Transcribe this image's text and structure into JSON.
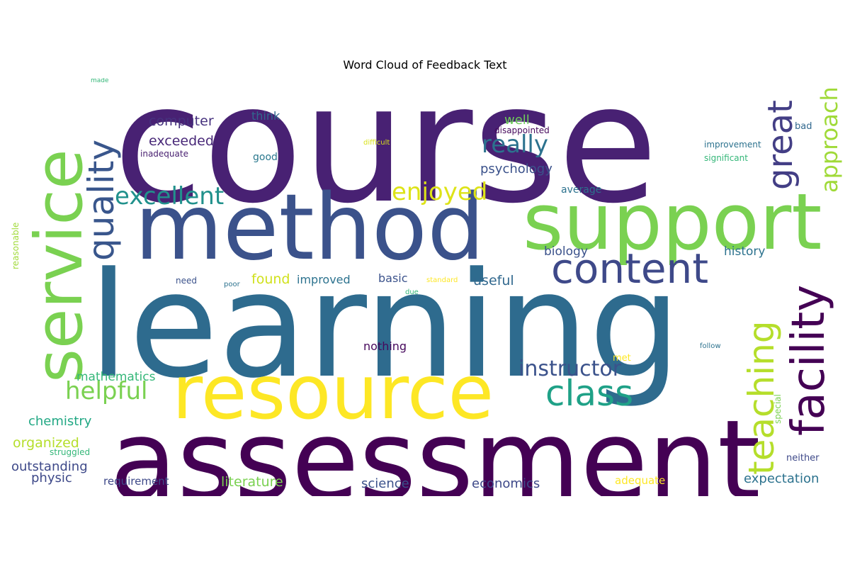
{
  "figure": {
    "title": "Word Cloud of Feedback Text"
  },
  "words": [
    {
      "text": "course",
      "color": "#482173"
    },
    {
      "text": "learning",
      "color": "#2e6b8e"
    },
    {
      "text": "assessment",
      "color": "#440154"
    },
    {
      "text": "method",
      "color": "#3b528b"
    },
    {
      "text": "support",
      "color": "#7ad151"
    },
    {
      "text": "resource",
      "color": "#fde725"
    },
    {
      "text": "service",
      "color": "#7ad151"
    },
    {
      "text": "content",
      "color": "#3e4989"
    },
    {
      "text": "quality",
      "color": "#39568c"
    },
    {
      "text": "facility",
      "color": "#440154"
    },
    {
      "text": "teaching",
      "color": "#b5de2b"
    },
    {
      "text": "great",
      "color": "#433e85"
    },
    {
      "text": "approach",
      "color": "#a0da39"
    },
    {
      "text": "class",
      "color": "#1fa187"
    },
    {
      "text": "excellent",
      "color": "#21918c"
    },
    {
      "text": "enjoyed",
      "color": "#dde318"
    },
    {
      "text": "really",
      "color": "#2c728e"
    },
    {
      "text": "instructor",
      "color": "#3b528b"
    },
    {
      "text": "helpful",
      "color": "#7ad151"
    },
    {
      "text": "psychology",
      "color": "#3b528b"
    },
    {
      "text": "computer",
      "color": "#46327e"
    },
    {
      "text": "exceeded",
      "color": "#482878"
    },
    {
      "text": "think",
      "color": "#31688e"
    },
    {
      "text": "well",
      "color": "#6ece58"
    },
    {
      "text": "good",
      "color": "#2a788e"
    },
    {
      "text": "disappointed",
      "color": "#46085c"
    },
    {
      "text": "inadequate",
      "color": "#481f70"
    },
    {
      "text": "difficult",
      "color": "#d8e219"
    },
    {
      "text": "improvement",
      "color": "#2c728e"
    },
    {
      "text": "significant",
      "color": "#35b779"
    },
    {
      "text": "bad",
      "color": "#31688e"
    },
    {
      "text": "average",
      "color": "#2c728e"
    },
    {
      "text": "biology",
      "color": "#3b528b"
    },
    {
      "text": "history",
      "color": "#2c728e"
    },
    {
      "text": "found",
      "color": "#d0e11c"
    },
    {
      "text": "improved",
      "color": "#2c728e"
    },
    {
      "text": "basic",
      "color": "#3b528b"
    },
    {
      "text": "useful",
      "color": "#31688e"
    },
    {
      "text": "need",
      "color": "#3b528b"
    },
    {
      "text": "poor",
      "color": "#2c728e"
    },
    {
      "text": "standard",
      "color": "#fde725"
    },
    {
      "text": "due",
      "color": "#35b779"
    },
    {
      "text": "nothing",
      "color": "#46085c"
    },
    {
      "text": "met",
      "color": "#fde725"
    },
    {
      "text": "follow",
      "color": "#2c728e"
    },
    {
      "text": "mathematics",
      "color": "#35b779"
    },
    {
      "text": "chemistry",
      "color": "#22a884"
    },
    {
      "text": "organized",
      "color": "#b5de2b"
    },
    {
      "text": "struggled",
      "color": "#35b779"
    },
    {
      "text": "outstanding",
      "color": "#3e4989"
    },
    {
      "text": "physic",
      "color": "#3e4989"
    },
    {
      "text": "requirement",
      "color": "#3e4989"
    },
    {
      "text": "literature",
      "color": "#7ad151"
    },
    {
      "text": "science",
      "color": "#3b528b"
    },
    {
      "text": "economics",
      "color": "#3e4989"
    },
    {
      "text": "adequate",
      "color": "#fde725"
    },
    {
      "text": "expectation",
      "color": "#2c728e"
    },
    {
      "text": "neither",
      "color": "#3e4989"
    },
    {
      "text": "special",
      "color": "#7ad151"
    },
    {
      "text": "reasonable",
      "color": "#a0da39"
    },
    {
      "text": "made",
      "color": "#35b779"
    }
  ]
}
